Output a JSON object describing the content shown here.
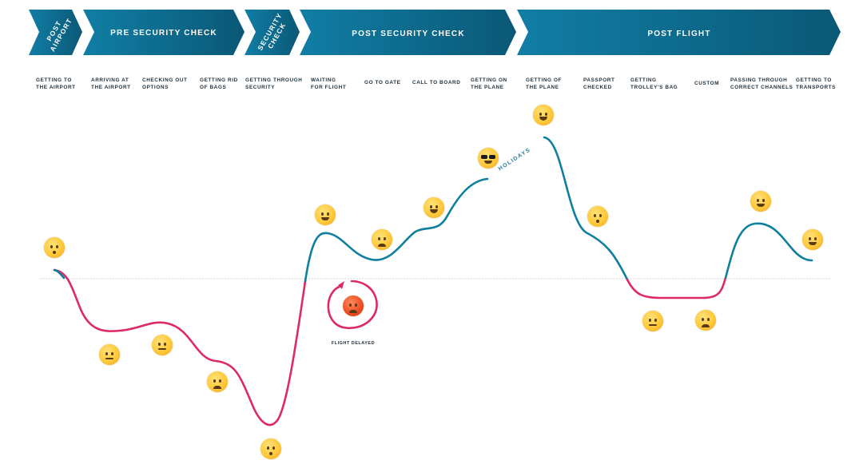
{
  "colors": {
    "banner_dark": "#0a5876",
    "banner_light": "#117ea5",
    "positive_line": "#0f7f9e",
    "negative_line": "#de2a62",
    "baseline": "#c8c8c8",
    "text": "#1e2f3d"
  },
  "phases": [
    {
      "label": "POST AIRPORT"
    },
    {
      "label": "PRE SECURITY CHECK"
    },
    {
      "label": "SECURITY CHECK"
    },
    {
      "label": "POST SECURITY CHECK"
    },
    {
      "label": "POST FLIGHT"
    }
  ],
  "steps": [
    {
      "label": "GETTING TO\nTHE AIRPORT",
      "emoji": "hushed-face-icon"
    },
    {
      "label": "ARRIVING AT\nTHE AIRPORT",
      "emoji": "neutral-face-icon"
    },
    {
      "label": "CHECKING OUT\nOPTIONS",
      "emoji": "raised-eyebrow-face-icon"
    },
    {
      "label": "GETTING RID\nOF BAGS",
      "emoji": "steam-nose-face-icon"
    },
    {
      "label": "GETTING THROUGH\nSECURITY",
      "emoji": "exploding-head-icon"
    },
    {
      "label": "WAITING\nFOR FLIGHT",
      "emoji": "smiling-face-icon"
    },
    {
      "label": "GO TO GATE",
      "emoji": "weary-face-icon"
    },
    {
      "label": "CALL TO BOARD",
      "emoji": "hugging-face-icon"
    },
    {
      "label": "GETTING ON\nTHE PLANE",
      "emoji": "sunglasses-face-icon"
    },
    {
      "label": "GETTING OF\nTHE PLANE",
      "emoji": "star-struck-face-icon"
    },
    {
      "label": "PASSPORT\nCHECKED",
      "emoji": "sleepy-face-icon"
    },
    {
      "label": "GETTING\nTROLLEY'S BAG",
      "emoji": "monocle-face-icon"
    },
    {
      "label": "CUSTOM",
      "emoji": "confounded-face-icon"
    },
    {
      "label": "PASSING THROUGH\nCORRECT CHANNELS",
      "emoji": "party-face-icon"
    },
    {
      "label": "GETTING TO\nTRANSPORTS",
      "emoji": "smiling-face-icon"
    }
  ],
  "annotations": {
    "flight_delayed": "FLIGHT DELAYED",
    "holidays": "HOLIDAYS"
  },
  "delay_emoji": "angry-face-icon"
}
